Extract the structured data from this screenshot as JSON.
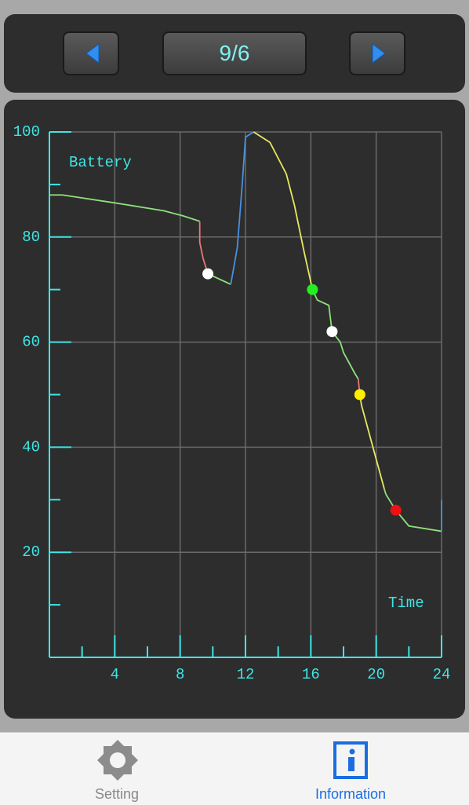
{
  "header": {
    "date": "9/6"
  },
  "chart_data": {
    "type": "line",
    "y_label": "Battery",
    "x_label": "Time",
    "xlim": [
      0,
      24
    ],
    "ylim": [
      0,
      100
    ],
    "xticks": [
      4,
      8,
      12,
      16,
      20,
      24
    ],
    "yticks": [
      20,
      40,
      60,
      80,
      100
    ],
    "xminor": [
      2,
      6,
      10,
      14,
      18,
      22
    ],
    "yminor": [
      10,
      30,
      50,
      70,
      90
    ],
    "grid": true,
    "series": [
      {
        "color": "#8ee07a",
        "x": [
          0,
          0.8,
          4,
          7,
          8.2,
          9.2
        ],
        "values": [
          88,
          88,
          86.5,
          85,
          84,
          83
        ]
      },
      {
        "color": "#e87878",
        "x": [
          9.2,
          9.2,
          9.4,
          9.7
        ],
        "values": [
          83,
          79,
          76,
          73
        ]
      },
      {
        "color": "#8ee07a",
        "x": [
          9.7,
          11.1
        ],
        "values": [
          73,
          71
        ]
      },
      {
        "color": "#4a90e0",
        "x": [
          11.1,
          11.5,
          11.6,
          11.8,
          12,
          12.5
        ],
        "values": [
          71,
          78,
          82,
          90,
          99,
          100
        ]
      },
      {
        "color": "#e8e860",
        "x": [
          12.5,
          13.5,
          14.5,
          15,
          15.6,
          16.1
        ],
        "values": [
          100,
          98,
          92,
          86,
          77,
          70
        ]
      },
      {
        "color": "#8ee07a",
        "x": [
          16.1,
          16.4,
          17.1,
          17.3,
          17.8,
          18,
          18.7,
          18.9
        ],
        "values": [
          70,
          68,
          67,
          62,
          60,
          58,
          54,
          53
        ]
      },
      {
        "color": "#e87878",
        "x": [
          18.9,
          19
        ],
        "values": [
          53,
          50
        ]
      },
      {
        "color": "#e8e860",
        "x": [
          19,
          19.1,
          20.5
        ],
        "values": [
          50,
          48,
          32
        ]
      },
      {
        "color": "#8ee07a",
        "x": [
          20.5,
          20.6,
          21.2,
          22,
          24
        ],
        "values": [
          32,
          31,
          28,
          25,
          24
        ]
      },
      {
        "color": "#4a90e0",
        "x": [
          24,
          24
        ],
        "values": [
          24,
          30
        ]
      }
    ],
    "points": [
      {
        "x": 9.7,
        "y": 73,
        "color": "#ffffff"
      },
      {
        "x": 16.1,
        "y": 70,
        "color": "#22ee22"
      },
      {
        "x": 17.3,
        "y": 62,
        "color": "#ffffff"
      },
      {
        "x": 19,
        "y": 50,
        "color": "#ffee00"
      },
      {
        "x": 21.2,
        "y": 28,
        "color": "#ee1111"
      }
    ]
  },
  "tabs": [
    {
      "label": "Setting"
    },
    {
      "label": "Information"
    }
  ]
}
